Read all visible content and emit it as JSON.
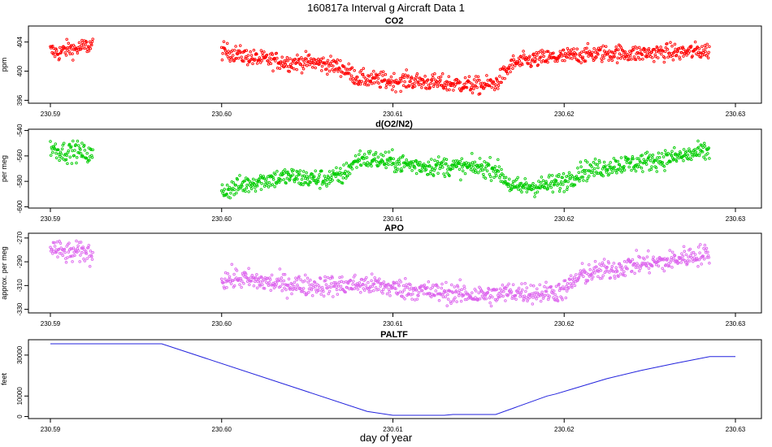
{
  "title": "160817a   Interval g Aircraft Data 1",
  "x_axis_label": "day of year",
  "chart_data": [
    {
      "type": "scatter",
      "title": "CO2",
      "ylabel": "ppm",
      "xlim": [
        230.5875,
        230.6313
      ],
      "ylim": [
        395.6,
        406.2
      ],
      "x_ticks": [
        "230.59",
        "230.60",
        "230.61",
        "230.62",
        "230.63"
      ],
      "y_ticks": [
        "396",
        "400",
        "404"
      ],
      "color": "#ff0000",
      "series": [
        {
          "x": [
            230.59,
            230.5905,
            230.591,
            230.5915,
            230.592,
            230.5925,
            230.6,
            230.601,
            230.602,
            230.603,
            230.604,
            230.605,
            230.606,
            230.607,
            230.608,
            230.609,
            230.61,
            230.611,
            230.612,
            230.613,
            230.614,
            230.615,
            230.616,
            230.617,
            230.618,
            230.619,
            230.62,
            230.621,
            230.622,
            230.623,
            230.624,
            230.625,
            230.626,
            230.627,
            230.628
          ],
          "y": [
            402.8,
            402.5,
            403.1,
            403.0,
            403.4,
            403.6,
            402.8,
            402.3,
            401.7,
            401.5,
            401.2,
            401.3,
            401.0,
            400.5,
            399.0,
            398.8,
            398.6,
            398.7,
            398.5,
            398.3,
            398.2,
            398.0,
            398.3,
            401.0,
            401.5,
            401.8,
            402.0,
            402.3,
            402.4,
            402.5,
            402.4,
            402.5,
            402.6,
            402.6,
            402.8
          ]
        }
      ]
    },
    {
      "type": "scatter",
      "title": "d(O2/N2)",
      "ylabel": "per meg",
      "xlim": [
        230.5875,
        230.6313
      ],
      "ylim": [
        -601,
        -539
      ],
      "x_ticks": [
        "230.59",
        "230.60",
        "230.61",
        "230.62",
        "230.63"
      ],
      "y_ticks": [
        "-600",
        "-580",
        "-560",
        "-540"
      ],
      "color": "#00cc00",
      "series": [
        {
          "x": [
            230.59,
            230.5905,
            230.591,
            230.5915,
            230.592,
            230.6,
            230.601,
            230.602,
            230.603,
            230.604,
            230.605,
            230.606,
            230.607,
            230.608,
            230.609,
            230.61,
            230.611,
            230.612,
            230.613,
            230.614,
            230.615,
            230.616,
            230.617,
            230.618,
            230.619,
            230.62,
            230.621,
            230.622,
            230.623,
            230.624,
            230.625,
            230.626,
            230.627,
            230.628
          ],
          "y": [
            -553,
            -556,
            -557,
            -556,
            -558,
            -588,
            -584,
            -580,
            -578,
            -576,
            -578,
            -578,
            -576,
            -562,
            -563,
            -565,
            -567,
            -568,
            -568,
            -569,
            -569,
            -570,
            -585,
            -584,
            -583,
            -580,
            -572,
            -570,
            -567,
            -566,
            -564,
            -562,
            -560,
            -557
          ]
        }
      ]
    },
    {
      "type": "scatter",
      "title": "APO",
      "ylabel": "approx. per meg",
      "xlim": [
        230.5875,
        230.6313
      ],
      "ylim": [
        -333,
        -266
      ],
      "x_ticks": [
        "230.59",
        "230.60",
        "230.61",
        "230.62",
        "230.63"
      ],
      "y_ticks": [
        "-330",
        "-310",
        "-290",
        "-270"
      ],
      "color": "#dd66ee",
      "series": [
        {
          "x": [
            230.59,
            230.5905,
            230.591,
            230.5915,
            230.592,
            230.6,
            230.601,
            230.602,
            230.603,
            230.604,
            230.605,
            230.606,
            230.607,
            230.608,
            230.609,
            230.61,
            230.611,
            230.612,
            230.613,
            230.614,
            230.615,
            230.616,
            230.617,
            230.618,
            230.619,
            230.62,
            230.621,
            230.622,
            230.623,
            230.624,
            230.625,
            230.626,
            230.627,
            230.628
          ],
          "y": [
            -278,
            -281,
            -283,
            -282,
            -282,
            -305,
            -304,
            -306,
            -308,
            -309,
            -310,
            -310,
            -310,
            -309,
            -310,
            -312,
            -313,
            -315,
            -316,
            -317,
            -318,
            -318,
            -315,
            -316,
            -316,
            -314,
            -301,
            -298,
            -296,
            -292,
            -291,
            -290,
            -286,
            -284
          ]
        }
      ]
    },
    {
      "type": "line",
      "title": "PALTF",
      "ylabel": "feet",
      "xlim": [
        230.5875,
        230.6313
      ],
      "ylim": [
        -1000,
        37500
      ],
      "x_ticks": [
        "230.59",
        "230.60",
        "230.61",
        "230.62",
        "230.63"
      ],
      "y_ticks": [
        "0",
        "10000",
        "30000"
      ],
      "y_tick_values": [
        0,
        10000,
        30000
      ],
      "color": "#2222dd",
      "series": [
        {
          "x": [
            230.59,
            230.5935,
            230.5965,
            230.6085,
            230.61,
            230.613,
            230.6135,
            230.616,
            230.619,
            230.6195,
            230.6205,
            230.6225,
            230.6245,
            230.6265,
            230.6285,
            230.63
          ],
          "y": [
            35500,
            35500,
            35500,
            2500,
            600,
            600,
            1000,
            1000,
            10000,
            11000,
            13500,
            18500,
            22500,
            26000,
            29300,
            29300
          ]
        }
      ]
    }
  ]
}
